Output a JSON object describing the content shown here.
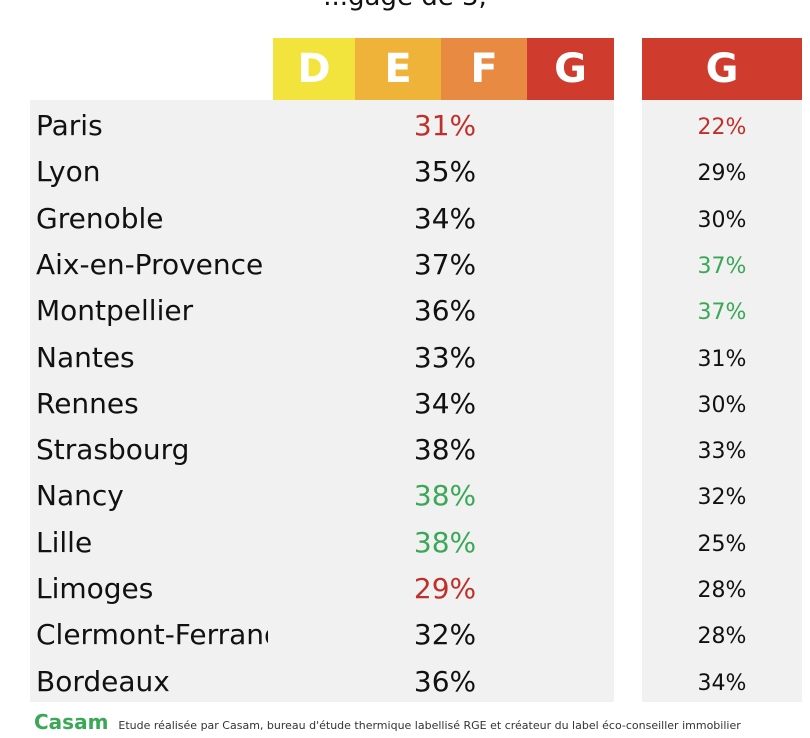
{
  "title_partial": "...gage de 3,",
  "colors": {
    "D": "#f2e43c",
    "E": "#efb33a",
    "F": "#e98a42",
    "G": "#cf3b2c",
    "red_text": "#c0302a",
    "green_text": "#3aa856",
    "normal_text": "#111111"
  },
  "chart_data": {
    "type": "table",
    "column_headers": [
      "D",
      "E",
      "F",
      "G"
    ],
    "second_column_header": "G",
    "rows": [
      {
        "city": "Paris",
        "val1": "31%",
        "val1_color": "red",
        "val2": "22%",
        "val2_color": "red"
      },
      {
        "city": "Lyon",
        "val1": "35%",
        "val1_color": "normal",
        "val2": "29%",
        "val2_color": "normal"
      },
      {
        "city": "Grenoble",
        "val1": "34%",
        "val1_color": "normal",
        "val2": "30%",
        "val2_color": "normal"
      },
      {
        "city": "Aix-en-Provence",
        "val1": "37%",
        "val1_color": "normal",
        "val2": "37%",
        "val2_color": "green"
      },
      {
        "city": "Montpellier",
        "val1": "36%",
        "val1_color": "normal",
        "val2": "37%",
        "val2_color": "green"
      },
      {
        "city": "Nantes",
        "val1": "33%",
        "val1_color": "normal",
        "val2": "31%",
        "val2_color": "normal"
      },
      {
        "city": "Rennes",
        "val1": "34%",
        "val1_color": "normal",
        "val2": "30%",
        "val2_color": "normal"
      },
      {
        "city": "Strasbourg",
        "val1": "38%",
        "val1_color": "normal",
        "val2": "33%",
        "val2_color": "normal"
      },
      {
        "city": "Nancy",
        "val1": "38%",
        "val1_color": "green",
        "val2": "32%",
        "val2_color": "normal"
      },
      {
        "city": "Lille",
        "val1": "38%",
        "val1_color": "green",
        "val2": "25%",
        "val2_color": "normal"
      },
      {
        "city": "Limoges",
        "val1": "29%",
        "val1_color": "red",
        "val2": "28%",
        "val2_color": "normal"
      },
      {
        "city": "Clermont-Ferrand",
        "val1": "32%",
        "val1_color": "normal",
        "val2": "28%",
        "val2_color": "normal"
      },
      {
        "city": "Bordeaux",
        "val1": "36%",
        "val1_color": "normal",
        "val2": "34%",
        "val2_color": "normal"
      }
    ]
  },
  "footer": {
    "brand": "Casam",
    "note": "Etude réalisée par Casam, bureau d'étude thermique labellisé RGE et créateur du label éco-conseiller immobilier"
  }
}
